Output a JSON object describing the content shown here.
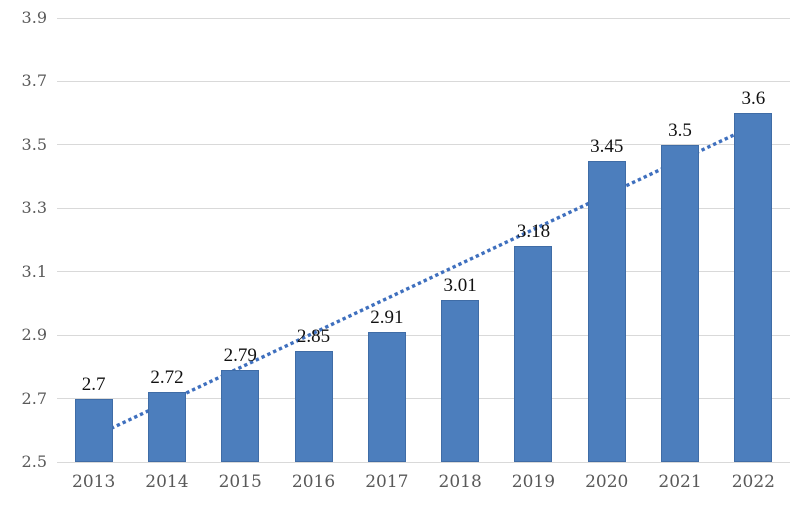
{
  "chart_data": {
    "type": "bar",
    "title": "",
    "xlabel": "",
    "ylabel": "",
    "categories": [
      "2013",
      "2014",
      "2015",
      "2016",
      "2017",
      "2018",
      "2019",
      "2020",
      "2021",
      "2022"
    ],
    "values": [
      2.7,
      2.72,
      2.79,
      2.85,
      2.91,
      3.01,
      3.18,
      3.45,
      3.5,
      3.6
    ],
    "data_labels": [
      "2.7",
      "2.72",
      "2.79",
      "2.85",
      "2.91",
      "3.01",
      "3.18",
      "3.45",
      "3.5",
      "3.6"
    ],
    "y_ticks": [
      2.5,
      2.7,
      2.9,
      3.1,
      3.3,
      3.5,
      3.7,
      3.9
    ],
    "y_tick_labels": [
      "2.5",
      "2.7",
      "2.9",
      "3.1",
      "3.3",
      "3.5",
      "3.7",
      "3.9"
    ],
    "ylim": [
      2.5,
      3.9
    ],
    "grid": "horizontal",
    "legend": "none",
    "colors": {
      "bar_fill": "#4c7ebd",
      "bar_border": "#3f6ca6",
      "gridline": "#d9d9d9",
      "axis_text": "#595959",
      "value_label_text": "#111111",
      "trendline": "#3e6fbe"
    },
    "trendline": {
      "type": "linear",
      "style": "dotted",
      "color": "#3e6fbe",
      "start_value": 2.58,
      "end_value": 3.56
    }
  }
}
